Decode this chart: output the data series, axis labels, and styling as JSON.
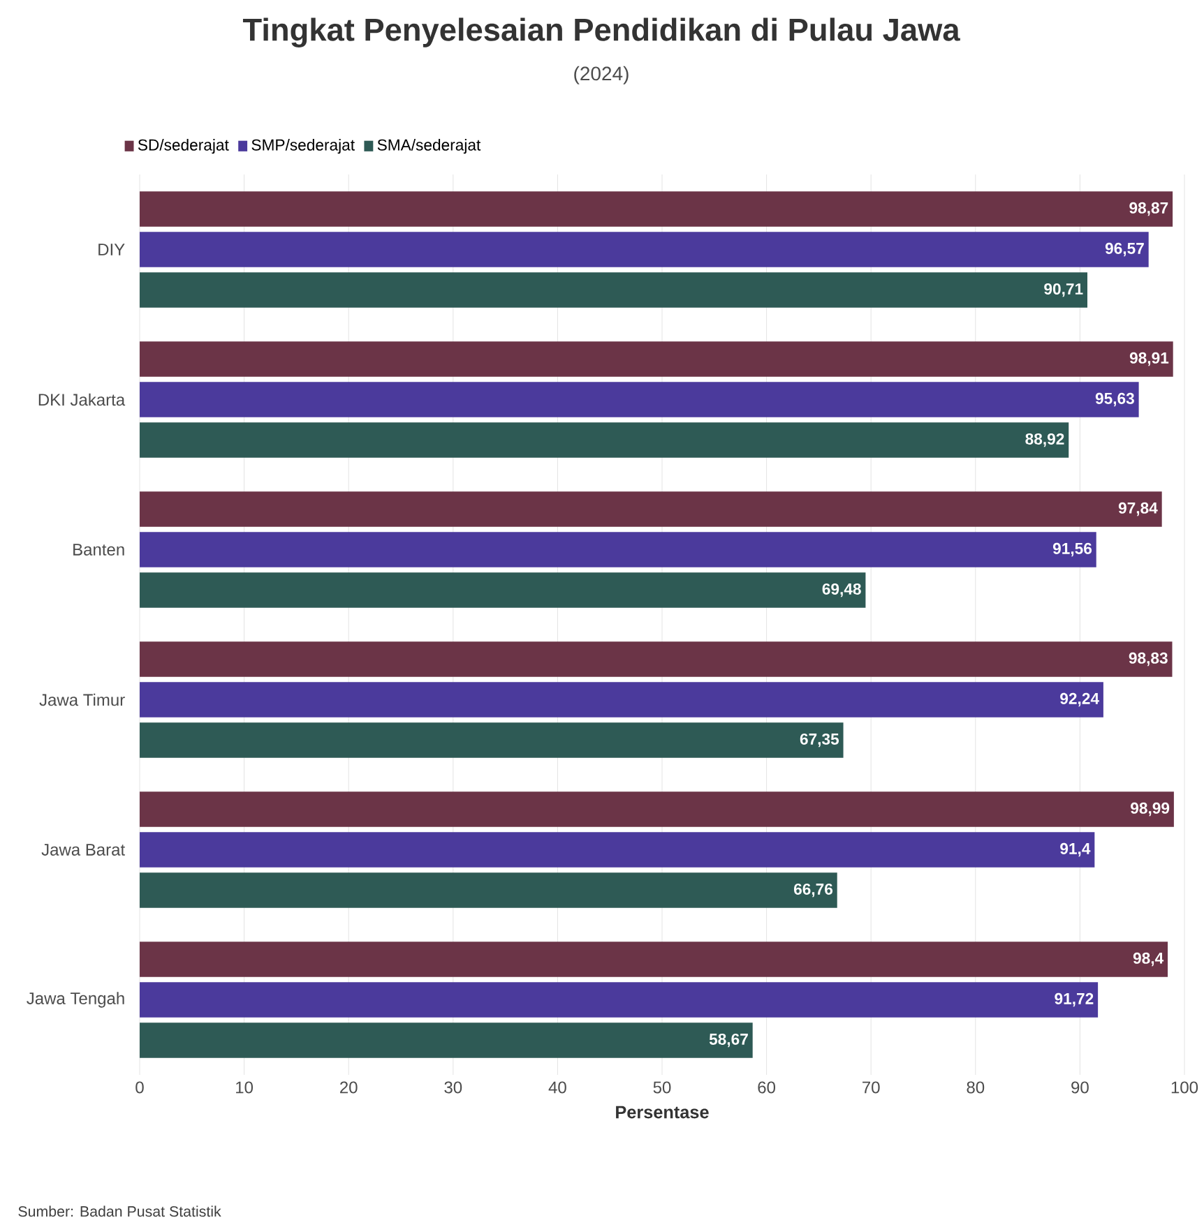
{
  "chart_data": {
    "type": "bar",
    "orientation": "horizontal",
    "title": "Tingkat Penyelesaian Pendidikan di Pulau Jawa",
    "subtitle": "(2024)",
    "xlabel": "Persentase",
    "categories": [
      "DIY",
      "DKI Jakarta",
      "Banten",
      "Jawa Timur",
      "Jawa Barat",
      "Jawa Tengah"
    ],
    "series": [
      {
        "name": "SD/sederajat",
        "color": "#6b3447",
        "values": [
          98.87,
          98.91,
          97.84,
          98.83,
          98.99,
          98.4
        ],
        "value_labels": [
          "98,87",
          "98,91",
          "97,84",
          "98,83",
          "98,99",
          "98,4"
        ]
      },
      {
        "name": "SMP/sederajat",
        "color": "#4b3a9c",
        "values": [
          96.57,
          95.63,
          91.56,
          92.24,
          91.4,
          91.72
        ],
        "value_labels": [
          "96,57",
          "95,63",
          "91,56",
          "92,24",
          "91,4",
          "91,72"
        ]
      },
      {
        "name": "SMA/sederajat",
        "color": "#2e5a55",
        "values": [
          90.71,
          88.92,
          69.48,
          67.35,
          66.76,
          58.67
        ],
        "value_labels": [
          "90,71",
          "88,92",
          "69,48",
          "67,35",
          "66,76",
          "58,67"
        ]
      }
    ],
    "xlim": [
      0,
      100
    ],
    "xticks": [
      0,
      10,
      20,
      30,
      40,
      50,
      60,
      70,
      80,
      90,
      100
    ],
    "grid": "x",
    "legend": "top left",
    "annotations": [
      "Sumber: Badan Pusat Statistik"
    ]
  }
}
